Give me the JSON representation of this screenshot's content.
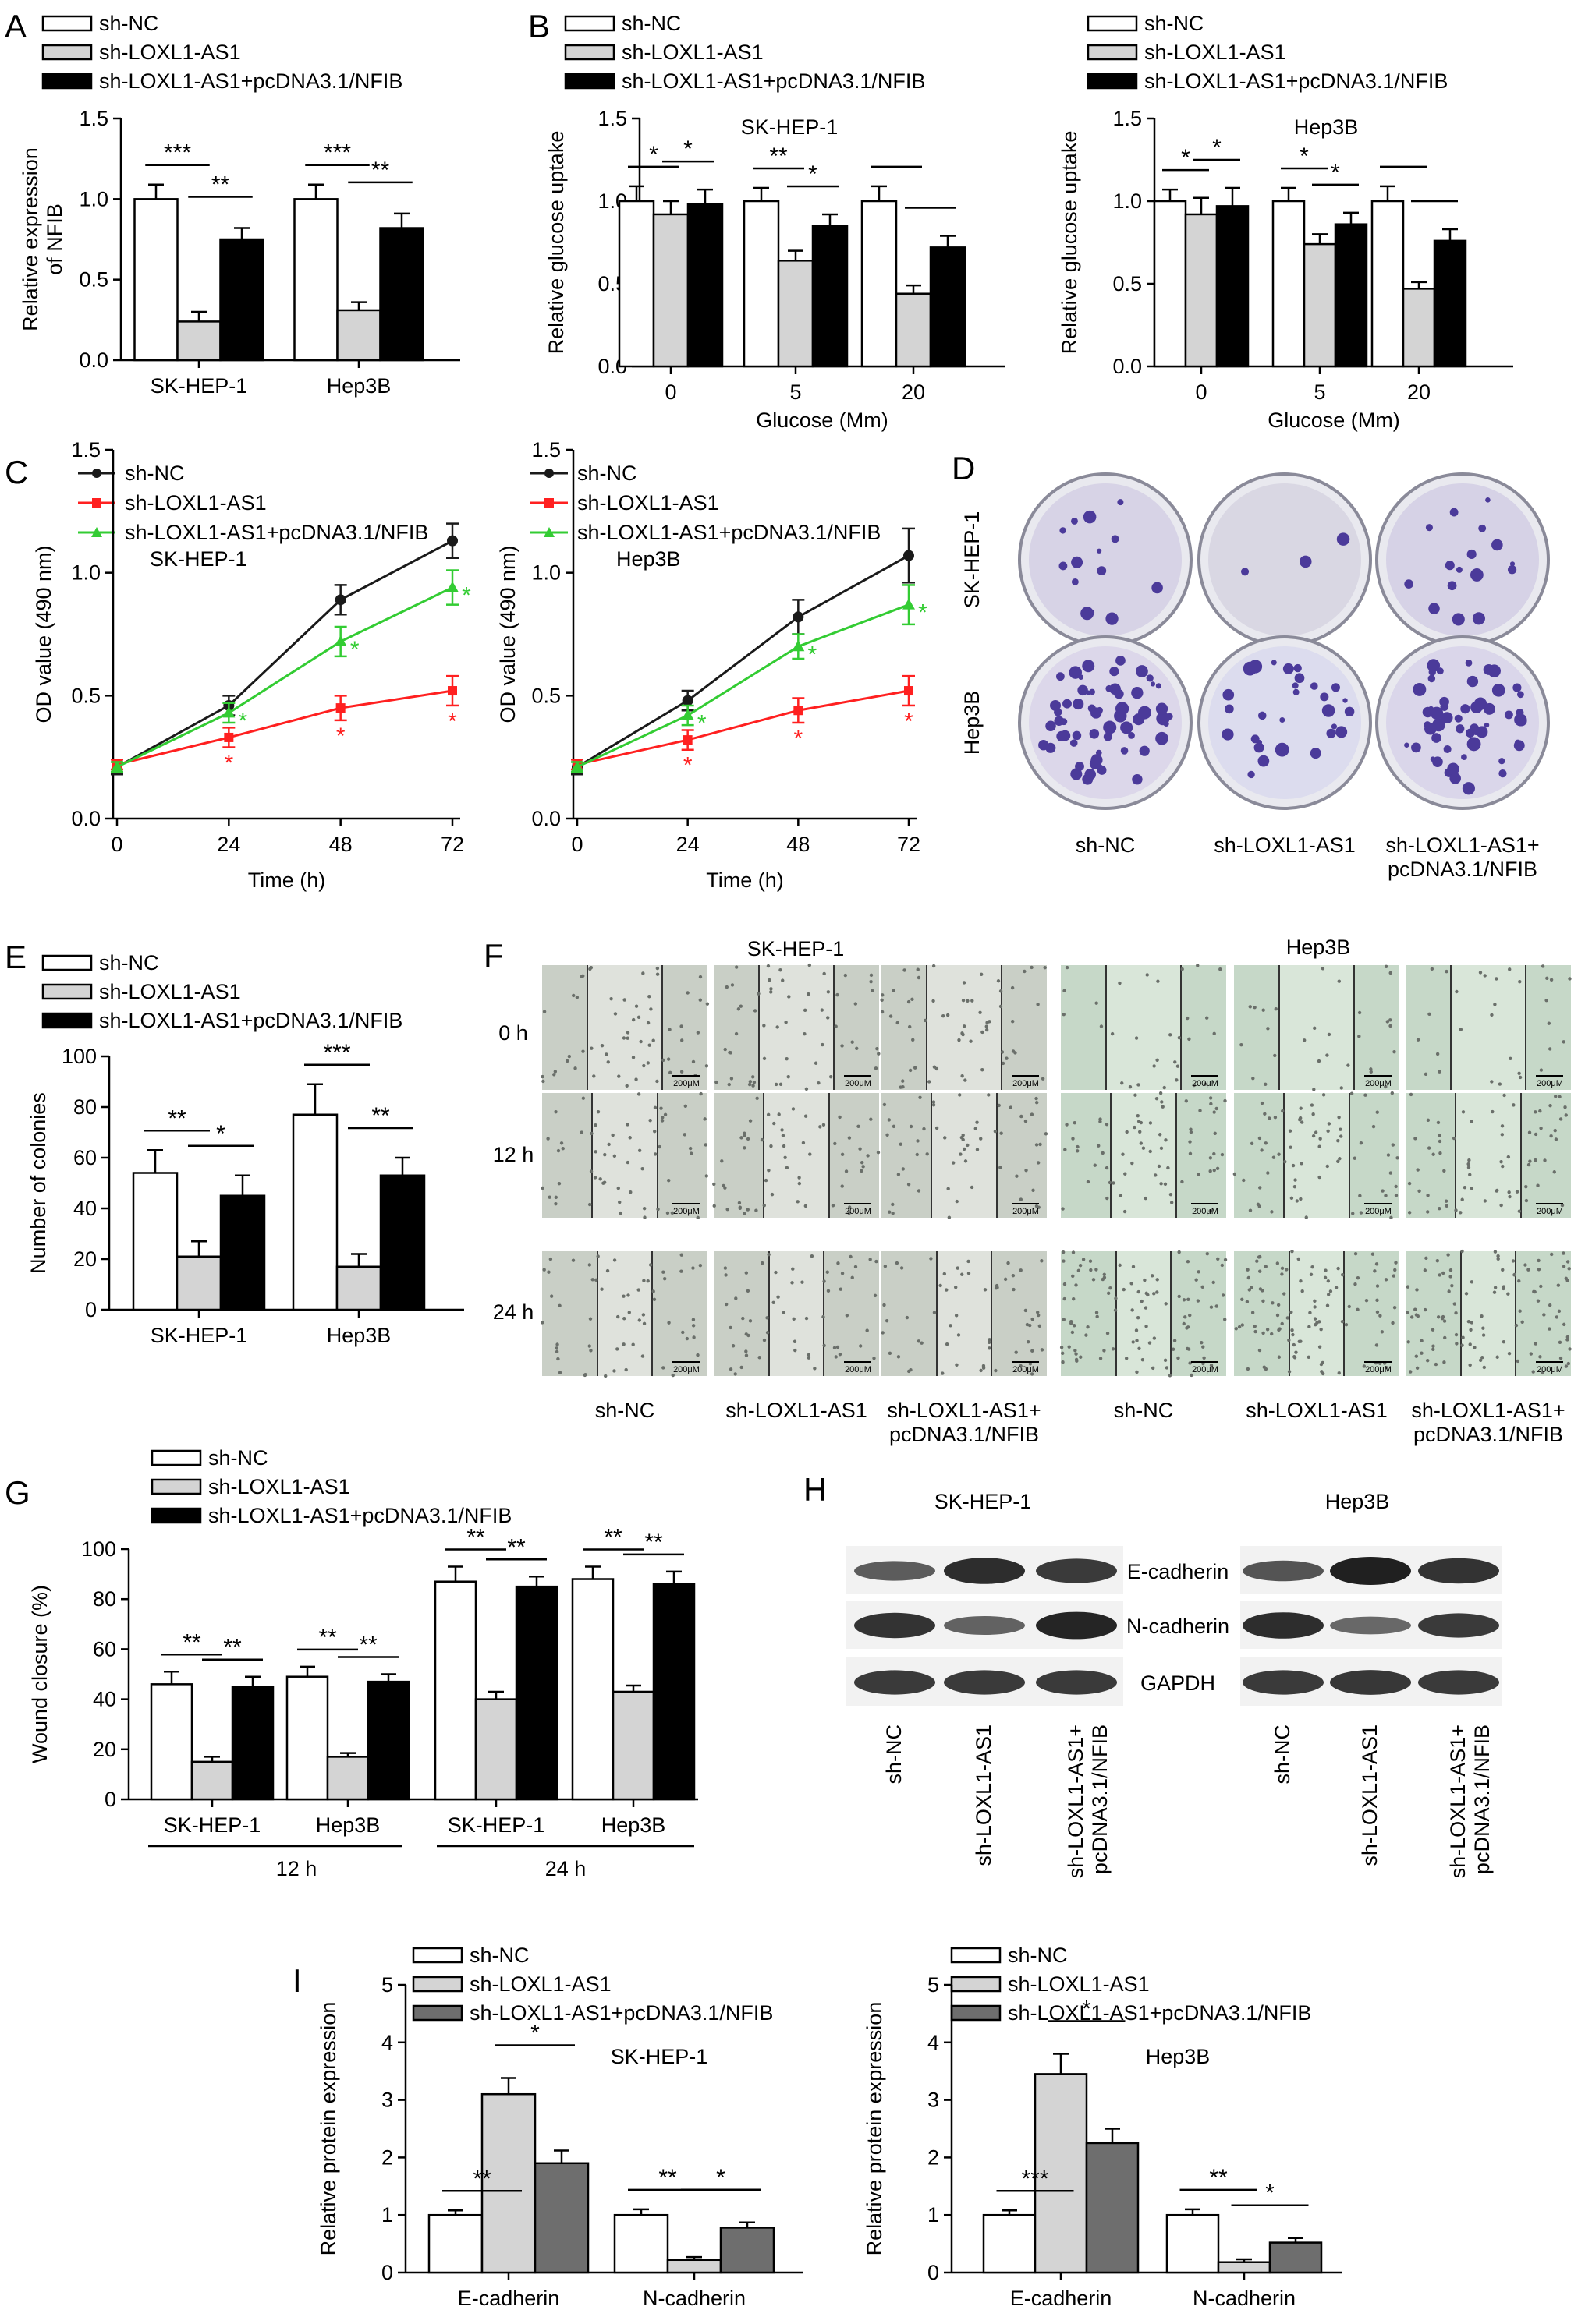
{
  "colors": {
    "white": "#ffffff",
    "light_gray": "#d4d4d4",
    "black": "#000000",
    "dark_gray": "#6e6e6e",
    "line_black": "#1a1a1a",
    "line_red": "#ff2020",
    "line_green": "#33cc33"
  },
  "legend_3": [
    "sh-NC",
    "sh-LOXL1-AS1",
    "sh-LOXL1-AS1+pcDNA3.1/NFIB"
  ],
  "panels": {
    "A": {
      "letter": "A"
    },
    "B": {
      "letter": "B"
    },
    "C": {
      "letter": "C"
    },
    "D": {
      "letter": "D"
    },
    "E": {
      "letter": "E"
    },
    "F": {
      "letter": "F"
    },
    "G": {
      "letter": "G"
    },
    "H": {
      "letter": "H"
    },
    "I": {
      "letter": "I"
    }
  },
  "colony_plates": {
    "row_labels": [
      "SK-HEP-1",
      "Hep3B"
    ],
    "col_labels": [
      "sh-NC",
      "sh-LOXL1-AS1",
      "sh-LOXL1-AS1+\npcDNA3.1/NFIB"
    ]
  },
  "wound_images": {
    "cell_lines": [
      "SK-HEP-1",
      "Hep3B"
    ],
    "time_labels": [
      "0 h",
      "12 h",
      "24 h"
    ],
    "col_labels": [
      "sh-NC",
      "sh-LOXL1-AS1",
      "sh-LOXL1-AS1+\npcDNA3.1/NFIB",
      "sh-NC",
      "sh-LOXL1-AS1",
      "sh-LOXL1-AS1+\npcDNA3.1/NFIB"
    ],
    "scale_label": "200μM"
  },
  "western_blot": {
    "cell_lines": [
      "SK-HEP-1",
      "Hep3B"
    ],
    "proteins": [
      "E-cadherin",
      "N-cadherin",
      "GAPDH"
    ],
    "lane_labels": [
      "sh-NC",
      "sh-LOXL1-AS1",
      "sh-LOXL1-AS1+\npcDNA3.1/NFIB"
    ]
  },
  "chart_data": [
    {
      "id": "A",
      "type": "bar",
      "categories": [
        "SK-HEP-1",
        "Hep3B"
      ],
      "series": [
        {
          "name": "sh-NC",
          "values": [
            1.0,
            1.0
          ],
          "err": [
            0.09,
            0.09
          ]
        },
        {
          "name": "sh-LOXL1-AS1",
          "values": [
            0.24,
            0.31
          ],
          "err": [
            0.06,
            0.05
          ]
        },
        {
          "name": "sh-LOXL1-AS1+pcDNA3.1/NFIB",
          "values": [
            0.75,
            0.82
          ],
          "err": [
            0.07,
            0.09
          ]
        }
      ],
      "ylabel": "Relative expression\nof NFIB",
      "xlabel": "",
      "ylim": [
        0,
        1.5
      ],
      "yticks": [
        "0.0",
        "0.5",
        "1.0",
        "1.5"
      ],
      "sig": [
        "***",
        "**",
        "***",
        "**"
      ]
    },
    {
      "id": "B1",
      "type": "bar",
      "title": "SK-HEP-1",
      "categories": [
        "0",
        "5",
        "20"
      ],
      "series": [
        {
          "name": "sh-NC",
          "values": [
            1.0,
            1.0,
            1.0
          ],
          "err": [
            0.09,
            0.08,
            0.09
          ]
        },
        {
          "name": "sh-LOXL1-AS1",
          "values": [
            0.92,
            0.64,
            0.44
          ],
          "err": [
            0.08,
            0.06,
            0.05
          ]
        },
        {
          "name": "sh-LOXL1-AS1+pcDNA3.1/NFIB",
          "values": [
            0.98,
            0.85,
            0.72
          ],
          "err": [
            0.09,
            0.07,
            0.07
          ]
        }
      ],
      "ylabel": "Relative glucose uptake",
      "xlabel": "Glucose (Mm)",
      "ylim": [
        0,
        1.5
      ],
      "yticks": [
        "0.0",
        "0.5",
        "1.0",
        "1.5"
      ],
      "sig": [
        "*",
        "*",
        "**",
        "*"
      ]
    },
    {
      "id": "B2",
      "type": "bar",
      "title": "Hep3B",
      "categories": [
        "0",
        "5",
        "20"
      ],
      "series": [
        {
          "name": "sh-NC",
          "values": [
            1.0,
            1.0,
            1.0
          ],
          "err": [
            0.07,
            0.08,
            0.09
          ]
        },
        {
          "name": "sh-LOXL1-AS1",
          "values": [
            0.92,
            0.74,
            0.47
          ],
          "err": [
            0.1,
            0.06,
            0.04
          ]
        },
        {
          "name": "sh-LOXL1-AS1+pcDNA3.1/NFIB",
          "values": [
            0.97,
            0.86,
            0.76
          ],
          "err": [
            0.11,
            0.07,
            0.07
          ]
        }
      ],
      "ylabel": "Relative glucose uptake",
      "xlabel": "Glucose (Mm)",
      "ylim": [
        0,
        1.5
      ],
      "yticks": [
        "0.0",
        "0.5",
        "1.0",
        "1.5"
      ],
      "sig": [
        "*",
        "*",
        "*",
        "*"
      ]
    },
    {
      "id": "C1",
      "type": "line",
      "title": "SK-HEP-1",
      "x": [
        0,
        24,
        48,
        72
      ],
      "series": [
        {
          "name": "sh-NC",
          "values": [
            0.21,
            0.46,
            0.89,
            1.13
          ],
          "err": [
            0.03,
            0.04,
            0.06,
            0.07
          ]
        },
        {
          "name": "sh-LOXL1-AS1",
          "values": [
            0.22,
            0.33,
            0.45,
            0.52
          ],
          "err": [
            0.02,
            0.04,
            0.05,
            0.06
          ]
        },
        {
          "name": "sh-LOXL1-AS1+pcDNA3.1/NFIB",
          "values": [
            0.21,
            0.43,
            0.72,
            0.94
          ],
          "err": [
            0.02,
            0.04,
            0.06,
            0.07
          ]
        }
      ],
      "ylabel": "OD value (490 nm)",
      "xlabel": "Time (h)",
      "ylim": [
        0,
        1.5
      ],
      "yticks": [
        "0.0",
        "0.5",
        "1.0",
        "1.5"
      ],
      "xticks": [
        "0",
        "24",
        "48",
        "72"
      ],
      "sig": [
        "*",
        "*"
      ]
    },
    {
      "id": "C2",
      "type": "line",
      "title": "Hep3B",
      "x": [
        0,
        24,
        48,
        72
      ],
      "series": [
        {
          "name": "sh-NC",
          "values": [
            0.21,
            0.48,
            0.82,
            1.07
          ],
          "err": [
            0.03,
            0.04,
            0.07,
            0.11
          ]
        },
        {
          "name": "sh-LOXL1-AS1",
          "values": [
            0.22,
            0.32,
            0.44,
            0.52
          ],
          "err": [
            0.02,
            0.04,
            0.05,
            0.06
          ]
        },
        {
          "name": "sh-LOXL1-AS1+pcDNA3.1/NFIB",
          "values": [
            0.21,
            0.42,
            0.7,
            0.87
          ],
          "err": [
            0.02,
            0.04,
            0.05,
            0.08
          ]
        }
      ],
      "ylabel": "OD value (490 nm)",
      "xlabel": "Time (h)",
      "ylim": [
        0,
        1.5
      ],
      "yticks": [
        "0.0",
        "0.5",
        "1.0",
        "1.5"
      ],
      "xticks": [
        "0",
        "24",
        "48",
        "72"
      ],
      "sig": [
        "*",
        "*"
      ]
    },
    {
      "id": "E",
      "type": "bar",
      "categories": [
        "SK-HEP-1",
        "Hep3B"
      ],
      "series": [
        {
          "name": "sh-NC",
          "values": [
            54,
            77
          ],
          "err": [
            9,
            12
          ]
        },
        {
          "name": "sh-LOXL1-AS1",
          "values": [
            21,
            17
          ],
          "err": [
            6,
            5
          ]
        },
        {
          "name": "sh-LOXL1-AS1+pcDNA3.1/NFIB",
          "values": [
            45,
            53
          ],
          "err": [
            8,
            7
          ]
        }
      ],
      "ylabel": "Number of colonies",
      "xlabel": "",
      "ylim": [
        0,
        100
      ],
      "yticks": [
        "0",
        "20",
        "40",
        "60",
        "80",
        "100"
      ],
      "sig": [
        "**",
        "*",
        "***",
        "**"
      ]
    },
    {
      "id": "G",
      "type": "bar",
      "categories": [
        "SK-HEP-1",
        "Hep3B",
        "SK-HEP-1",
        "Hep3B"
      ],
      "groups": [
        "12 h",
        "24 h"
      ],
      "series": [
        {
          "name": "sh-NC",
          "values": [
            46,
            49,
            87,
            88
          ],
          "err": [
            5,
            4,
            6,
            5
          ]
        },
        {
          "name": "sh-LOXL1-AS1",
          "values": [
            15,
            17,
            40,
            43
          ],
          "err": [
            2,
            1.5,
            3,
            2.5
          ]
        },
        {
          "name": "sh-LOXL1-AS1+pcDNA3.1/NFIB",
          "values": [
            45,
            47,
            85,
            86
          ],
          "err": [
            4,
            3,
            4,
            5
          ]
        }
      ],
      "ylabel": "Wound closure (%)",
      "xlabel": "",
      "ylim": [
        0,
        100
      ],
      "yticks": [
        "0",
        "20",
        "40",
        "60",
        "80",
        "100"
      ],
      "sig": [
        "**",
        "**",
        "**",
        "**",
        "**",
        "**",
        "**",
        "**"
      ]
    },
    {
      "id": "I1",
      "type": "bar",
      "title": "SK-HEP-1",
      "categories": [
        "E-cadherin",
        "N-cadherin"
      ],
      "series": [
        {
          "name": "sh-NC",
          "values": [
            1.0,
            1.0
          ],
          "err": [
            0.08,
            0.1
          ]
        },
        {
          "name": "sh-LOXL1-AS1",
          "values": [
            3.1,
            0.22
          ],
          "err": [
            0.28,
            0.05
          ]
        },
        {
          "name": "sh-LOXL1-AS1+pcDNA3.1/NFIB",
          "values": [
            1.9,
            0.78
          ],
          "err": [
            0.22,
            0.09
          ]
        }
      ],
      "ylabel": "Relative protein expression",
      "xlabel": "",
      "ylim": [
        0,
        5
      ],
      "yticks": [
        "0",
        "1",
        "2",
        "3",
        "4",
        "5"
      ],
      "sig": [
        "**",
        "*",
        "**",
        "*"
      ]
    },
    {
      "id": "I2",
      "type": "bar",
      "title": "Hep3B",
      "categories": [
        "E-cadherin",
        "N-cadherin"
      ],
      "series": [
        {
          "name": "sh-NC",
          "values": [
            1.0,
            1.0
          ],
          "err": [
            0.08,
            0.1
          ]
        },
        {
          "name": "sh-LOXL1-AS1",
          "values": [
            3.45,
            0.18
          ],
          "err": [
            0.35,
            0.05
          ]
        },
        {
          "name": "sh-LOXL1-AS1+pcDNA3.1/NFIB",
          "values": [
            2.25,
            0.52
          ],
          "err": [
            0.25,
            0.08
          ]
        }
      ],
      "ylabel": "Relative protein expression",
      "xlabel": "",
      "ylim": [
        0,
        5
      ],
      "yticks": [
        "0",
        "1",
        "2",
        "3",
        "4",
        "5"
      ],
      "sig": [
        "***",
        "*",
        "**",
        "*"
      ]
    }
  ]
}
